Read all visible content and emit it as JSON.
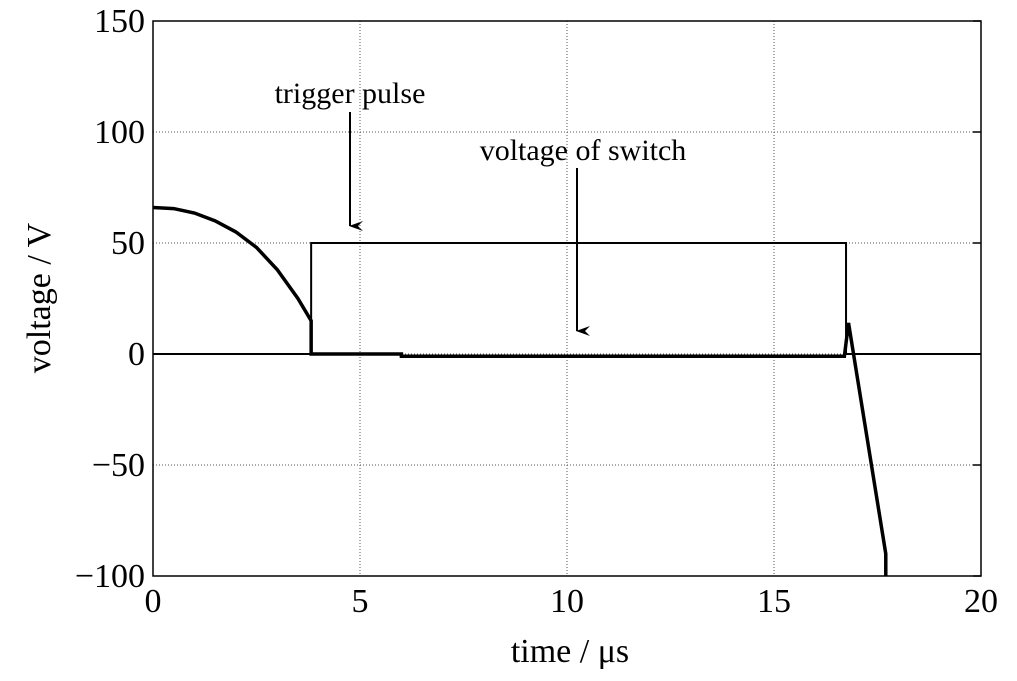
{
  "chart_data": {
    "type": "line",
    "xlabel": "time / μs",
    "ylabel": "voltage / V",
    "xlim": [
      0,
      20
    ],
    "ylim": [
      -100,
      150
    ],
    "xticks": [
      0,
      5,
      10,
      15,
      20
    ],
    "yticks": [
      {
        "value": -100,
        "label": "−100"
      },
      {
        "value": -50,
        "label": "−50"
      },
      0,
      50,
      100,
      150
    ],
    "grid": true,
    "series": [
      {
        "name": "trigger pulse",
        "color": "#000000",
        "x": [
          0,
          3.82,
          3.82,
          16.74,
          16.74,
          20
        ],
        "values": [
          0,
          0,
          50,
          50,
          0,
          0
        ]
      },
      {
        "name": "voltage of switch",
        "color": "#000000",
        "x": [
          0,
          0.5,
          1,
          1.5,
          2,
          2.5,
          3,
          3.5,
          3.82,
          3.82,
          6,
          6,
          16.7,
          16.8,
          17.7,
          17.7,
          20
        ],
        "values": [
          66,
          65.5,
          63.5,
          60,
          55,
          48,
          38,
          25,
          15,
          0,
          0,
          -1,
          -1,
          14,
          -90,
          -100,
          null
        ]
      }
    ]
  }
}
